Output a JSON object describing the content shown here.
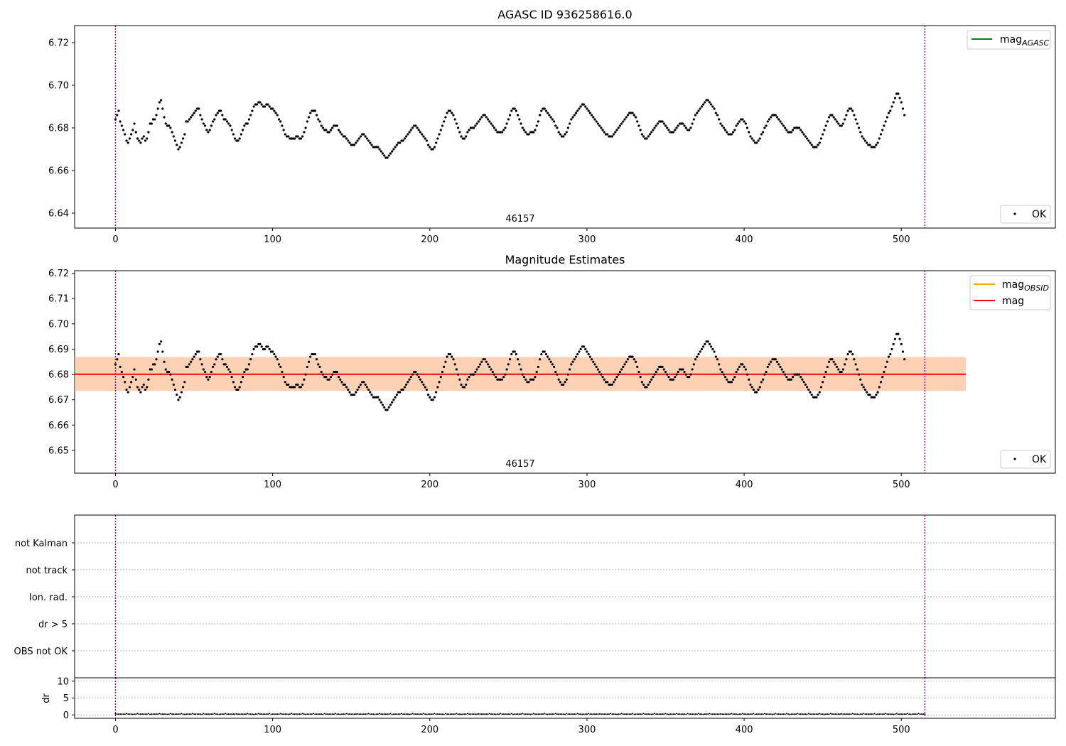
{
  "chart_data": [
    {
      "type": "scatter",
      "title": "AGASC ID 936258616.0",
      "xlim": [
        -26,
        598
      ],
      "ylim": [
        6.633,
        6.728
      ],
      "x_ticks": [
        0,
        100,
        200,
        300,
        400,
        500
      ],
      "y_ticks": [
        6.64,
        6.66,
        6.68,
        6.7,
        6.72
      ],
      "y_tick_labels": [
        "6.64",
        "6.66",
        "6.68",
        "6.70",
        "6.72"
      ],
      "vlines": [
        0,
        515
      ],
      "vline_color": "#800080",
      "annotation": {
        "text": "46157",
        "x": 257
      },
      "legend_lines": [
        {
          "label": "mag",
          "subscript": "AGASC",
          "color": "#008000"
        }
      ],
      "legend_points": [
        {
          "label": "OK",
          "color": "#000000"
        }
      ],
      "series": [
        {
          "name": "OK",
          "color": "#000000"
        }
      ],
      "x": "index 0..515",
      "y": [
        6.684,
        6.686,
        6.688,
        6.683,
        6.681,
        6.679,
        6.677,
        6.674,
        6.673,
        6.675,
        6.677,
        6.679,
        6.682,
        6.678,
        6.675,
        6.674,
        6.673,
        6.675,
        6.676,
        6.674,
        6.675,
        6.678,
        6.682,
        6.682,
        6.684,
        6.684,
        6.686,
        6.689,
        6.692,
        6.693,
        6.689,
        6.685,
        6.682,
        6.681,
        6.681,
        6.68,
        6.678,
        6.676,
        6.674,
        6.672,
        6.67,
        6.671,
        6.673,
        6.675,
        6.677,
        6.683,
        6.683,
        6.684,
        6.685,
        6.686,
        6.687,
        6.688,
        6.689,
        6.689,
        6.686,
        6.684,
        6.682,
        6.681,
        6.679,
        6.678,
        6.679,
        6.681,
        6.683,
        6.684,
        6.686,
        6.687,
        6.688,
        6.688,
        6.686,
        6.684,
        6.684,
        6.683,
        6.682,
        6.681,
        6.679,
        6.677,
        6.675,
        6.674,
        6.674,
        6.675,
        6.677,
        6.679,
        6.681,
        6.682,
        6.682,
        6.684,
        6.686,
        6.688,
        6.69,
        6.691,
        6.691,
        6.692,
        6.692,
        6.691,
        6.69,
        6.69,
        6.691,
        6.691,
        6.69,
        6.689,
        6.689,
        6.688,
        6.687,
        6.686,
        6.684,
        6.683,
        6.681,
        6.679,
        6.677,
        6.676,
        6.676,
        6.675,
        6.675,
        6.675,
        6.675,
        6.676,
        6.676,
        6.675,
        6.675,
        6.676,
        6.678,
        6.68,
        6.683,
        6.685,
        6.687,
        6.688,
        6.688,
        6.688,
        6.686,
        6.684,
        6.683,
        6.681,
        6.68,
        6.679,
        6.679,
        6.678,
        6.678,
        6.679,
        6.68,
        6.681,
        6.681,
        6.681,
        6.679,
        6.678,
        6.677,
        6.676,
        6.676,
        6.675,
        6.674,
        6.673,
        6.672,
        6.672,
        6.672,
        6.673,
        6.674,
        6.675,
        6.676,
        6.677,
        6.677,
        6.676,
        6.675,
        6.674,
        6.673,
        6.672,
        6.671,
        6.671,
        6.671,
        6.671,
        6.67,
        6.669,
        6.668,
        6.667,
        6.666,
        6.666,
        6.667,
        6.668,
        6.669,
        6.67,
        6.671,
        6.672,
        6.673,
        6.673,
        6.674,
        6.674,
        6.675,
        6.676,
        6.677,
        6.678,
        6.679,
        6.68,
        6.681,
        6.681,
        6.68,
        6.679,
        6.678,
        6.677,
        6.676,
        6.675,
        6.674,
        6.672,
        6.671,
        6.67,
        6.67,
        6.671,
        6.673,
        6.675,
        6.677,
        6.679,
        6.681,
        6.683,
        6.685,
        6.687,
        6.688,
        6.688,
        6.687,
        6.686,
        6.684,
        6.682,
        6.68,
        6.678,
        6.676,
        6.675,
        6.675,
        6.676,
        6.678,
        6.679,
        6.68,
        6.68,
        6.68,
        6.681,
        6.682,
        6.683,
        6.684,
        6.685,
        6.686,
        6.686,
        6.685,
        6.684,
        6.683,
        6.682,
        6.681,
        6.68,
        6.679,
        6.678,
        6.678,
        6.678,
        6.678,
        6.679,
        6.68,
        6.682,
        6.684,
        6.686,
        6.688,
        6.689,
        6.689,
        6.688,
        6.686,
        6.684,
        6.682,
        6.68,
        6.679,
        6.678,
        6.677,
        6.677,
        6.678,
        6.678,
        6.678,
        6.679,
        6.681,
        6.683,
        6.686,
        6.688,
        6.689,
        6.689,
        6.688,
        6.687,
        6.686,
        6.685,
        6.684,
        6.683,
        6.681,
        6.68,
        6.678,
        6.677,
        6.676,
        6.676,
        6.677,
        6.678,
        6.68,
        6.682,
        6.684,
        6.685,
        6.686,
        6.687,
        6.688,
        6.689,
        6.69,
        6.691,
        6.691,
        6.69,
        6.689,
        6.688,
        6.687,
        6.686,
        6.685,
        6.684,
        6.683,
        6.682,
        6.681,
        6.68,
        6.679,
        6.678,
        6.677,
        6.677,
        6.676,
        6.676,
        6.676,
        6.677,
        6.678,
        6.679,
        6.68,
        6.681,
        6.682,
        6.683,
        6.684,
        6.685,
        6.686,
        6.687,
        6.687,
        6.687,
        6.686,
        6.685,
        6.683,
        6.681,
        6.679,
        6.677,
        6.676,
        6.675,
        6.675,
        6.676,
        6.677,
        6.678,
        6.679,
        6.68,
        6.681,
        6.682,
        6.683,
        6.683,
        6.683,
        6.682,
        6.681,
        6.68,
        6.679,
        6.678,
        6.678,
        6.678,
        6.679,
        6.68,
        6.681,
        6.682,
        6.682,
        6.682,
        6.681,
        6.68,
        6.679,
        6.679,
        6.68,
        6.682,
        6.684,
        6.686,
        6.687,
        6.688,
        6.689,
        6.69,
        6.691,
        6.692,
        6.693,
        6.693,
        6.692,
        6.691,
        6.69,
        6.689,
        6.687,
        6.686,
        6.684,
        6.682,
        6.681,
        6.68,
        6.679,
        6.678,
        6.677,
        6.677,
        6.677,
        6.678,
        6.679,
        6.681,
        6.682,
        6.683,
        6.684,
        6.684,
        6.683,
        6.682,
        6.68,
        6.678,
        6.676,
        6.675,
        6.674,
        6.673,
        6.673,
        6.674,
        6.675,
        6.677,
        6.678,
        6.68,
        6.681,
        6.683,
        6.684,
        6.685,
        6.686,
        6.686,
        6.686,
        6.685,
        6.684,
        6.683,
        6.682,
        6.681,
        6.68,
        6.679,
        6.678,
        6.678,
        6.678,
        6.679,
        6.68,
        6.68,
        6.68,
        6.68,
        6.679,
        6.678,
        6.677,
        6.676,
        6.675,
        6.674,
        6.673,
        6.672,
        6.671,
        6.671,
        6.671,
        6.672,
        6.673,
        6.675,
        6.677,
        6.679,
        6.681,
        6.683,
        6.685,
        6.686,
        6.686,
        6.685,
        6.684,
        6.683,
        6.682,
        6.681,
        6.681,
        6.682,
        6.684,
        6.686,
        6.688,
        6.689,
        6.689,
        6.688,
        6.686,
        6.684,
        6.682,
        6.68,
        6.678,
        6.676,
        6.675,
        6.674,
        6.673,
        6.672,
        6.672,
        6.671,
        6.671,
        6.671,
        6.672,
        6.673,
        6.675,
        6.677,
        6.679,
        6.681,
        6.683,
        6.685,
        6.687,
        6.688,
        6.69,
        6.692,
        6.694,
        6.696,
        6.696,
        6.694,
        6.692,
        6.689,
        6.686
      ],
      "note": null
    },
    {
      "type": "scatter",
      "title": "Magnitude Estimates",
      "xlim": [
        -26,
        598
      ],
      "ylim": [
        6.641,
        6.721
      ],
      "x_ticks": [
        0,
        100,
        200,
        300,
        400,
        500
      ],
      "y_ticks": [
        6.65,
        6.66,
        6.67,
        6.68,
        6.69,
        6.7,
        6.71,
        6.72
      ],
      "y_tick_labels": [
        "6.65",
        "6.66",
        "6.67",
        "6.68",
        "6.69",
        "6.70",
        "6.71",
        "6.72"
      ],
      "vlines": [
        0,
        515
      ],
      "annotation": {
        "text": "46157",
        "x": 257
      },
      "mag_line": {
        "value": 6.6801,
        "x_range": [
          -26,
          541
        ],
        "color": "#ff0000"
      },
      "mag_band": {
        "range": [
          6.6735,
          6.6869
        ],
        "color": "#ffc0cb"
      },
      "obsid_band": {
        "range": [
          6.6735,
          6.6869
        ],
        "x_range": [
          -26,
          541
        ],
        "color": "#ffa500"
      },
      "legend_lines": [
        {
          "label": "mag",
          "subscript": "OBSID",
          "color": "#ffa500"
        },
        {
          "label": "mag",
          "subscript": "",
          "color": "#ff0000"
        }
      ],
      "legend_points": [
        {
          "label": "OK",
          "color": "#000000"
        }
      ]
    },
    {
      "type": "scatter",
      "categories": [
        "OBS not OK",
        "dr > 5",
        "Ion. rad.",
        "not track",
        "not Kalman"
      ],
      "xlim": [
        -26,
        598
      ],
      "vlines": [
        0,
        515
      ],
      "points": []
    },
    {
      "type": "scatter",
      "ylabel": "dr",
      "xlim": [
        -26,
        598
      ],
      "ylim": [
        -1,
        11
      ],
      "x_ticks": [
        0,
        100,
        200,
        300,
        400,
        500
      ],
      "y_ticks": [
        0,
        5,
        10
      ],
      "y_tick_labels": [
        "0",
        "5",
        "10"
      ],
      "vlines": [
        0,
        515
      ],
      "series": [
        {
          "name": "dr",
          "color": "#000000",
          "approx_value": 0.25
        }
      ]
    }
  ]
}
